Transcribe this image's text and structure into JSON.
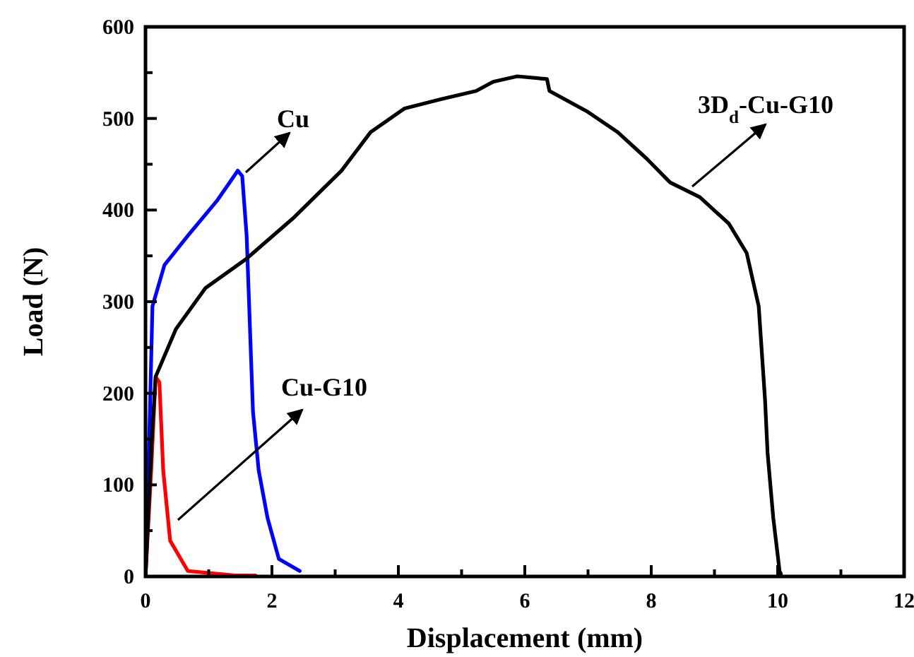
{
  "chart_data": {
    "type": "line",
    "xlabel": "Displacement (mm)",
    "ylabel": "Load (N)",
    "xlim": [
      0,
      12
    ],
    "ylim": [
      0,
      600
    ],
    "xticks": [
      0,
      {
        "value": 1,
        "label": null
      },
      2,
      {
        "value": 3,
        "label": null
      },
      4,
      {
        "value": 5,
        "label": null
      },
      6,
      {
        "value": 7,
        "label": null
      },
      8,
      {
        "value": 9,
        "label": null
      },
      10,
      {
        "value": 11,
        "label": null
      },
      12
    ],
    "yticks": [
      0,
      {
        "value": 50,
        "label": null
      },
      100,
      {
        "value": 150,
        "label": null
      },
      200,
      {
        "value": 250,
        "label": null
      },
      300,
      {
        "value": 350,
        "label": null
      },
      400,
      {
        "value": 450,
        "label": null
      },
      500,
      {
        "value": 550,
        "label": null
      },
      600
    ],
    "grid": false,
    "marker": "none",
    "line_style": "solid",
    "series": [
      {
        "name": "Cu",
        "color": "#0000ff",
        "x": [
          0,
          0.07,
          0.11,
          0.3,
          0.67,
          1.14,
          1.46,
          1.53,
          1.6,
          1.7,
          1.79,
          1.93,
          2.11,
          2.44
        ],
        "values": [
          0,
          180,
          295,
          340,
          372,
          411,
          443,
          437,
          372,
          180,
          116,
          64,
          19,
          6
        ]
      },
      {
        "name": "Cu-G10",
        "color": "#ff0000",
        "x": [
          0,
          0.09,
          0.16,
          0.22,
          0.28,
          0.39,
          0.67,
          1.42,
          1.74
        ],
        "values": [
          0,
          116,
          218,
          212,
          116,
          39,
          6,
          1,
          1
        ]
      },
      {
        "name": "3D$_{d}$-Cu-G10",
        "color": "#000000",
        "x": [
          0,
          0.1,
          0.16,
          0.48,
          0.95,
          1.6,
          2.35,
          3.1,
          3.56,
          4.1,
          4.67,
          5.23,
          5.5,
          5.88,
          6.35,
          6.39,
          7.0,
          7.47,
          7.93,
          8.3,
          8.77,
          9.23,
          9.51,
          9.7,
          9.8,
          9.84,
          9.93,
          10.03,
          10.05
        ],
        "values": [
          0,
          150,
          218,
          270,
          315,
          347,
          392,
          443,
          485,
          511,
          521,
          530,
          540,
          546,
          543,
          530,
          507,
          485,
          456,
          430,
          414,
          385,
          353,
          295,
          193,
          135,
          64,
          6,
          3
        ]
      }
    ]
  }
}
